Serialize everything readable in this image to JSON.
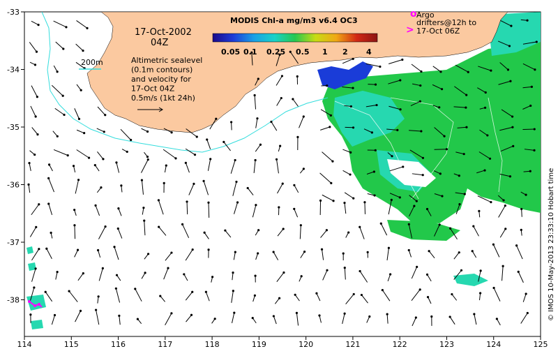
{
  "map": {
    "date_line1": "17-Oct-2002",
    "date_line2": "04Z",
    "contour_label": "200m",
    "annotation_lines": [
      "Altimetric sealevel",
      "(0.1m contours)",
      "and velocity for",
      "17-Oct 04Z",
      "0.5m/s (1kt 24h)"
    ],
    "colorbar_title": "MODIS Chl-a mg/m3 v6.4 OC3",
    "colorbar_labels": [
      "0.05",
      "0.1",
      "0.25",
      "0.5",
      "1",
      "2",
      "4"
    ],
    "colorbar_stops": [
      "#1a0a8a",
      "#1e3cd8",
      "#1aa0e6",
      "#1ad2c8",
      "#28c850",
      "#c8dc14",
      "#f0a814",
      "#d22814",
      "#8c1414"
    ],
    "argo_line1": "Argo",
    "argo_line2": "drifters@12h to",
    "argo_line3": "17-Oct 06Z",
    "argo_symbol_1": "o",
    "argo_symbol_2": ">",
    "credit": "© IMOS 10-May-2013 23:33:10 Hobart time",
    "x_ticks": [
      "114",
      "115",
      "116",
      "117",
      "118",
      "119",
      "120",
      "121",
      "122",
      "123",
      "124",
      "125"
    ],
    "y_ticks": [
      "-33",
      "-34",
      "-35",
      "-36",
      "-37",
      "-38"
    ],
    "colors": {
      "land": "#fbc9a0",
      "contour_200m": "#33dddd",
      "argo": "#ff00ff",
      "chl_low": "#22c84a",
      "chl_mid": "#26d8b0",
      "chl_high": "#1a3cd8"
    }
  }
}
